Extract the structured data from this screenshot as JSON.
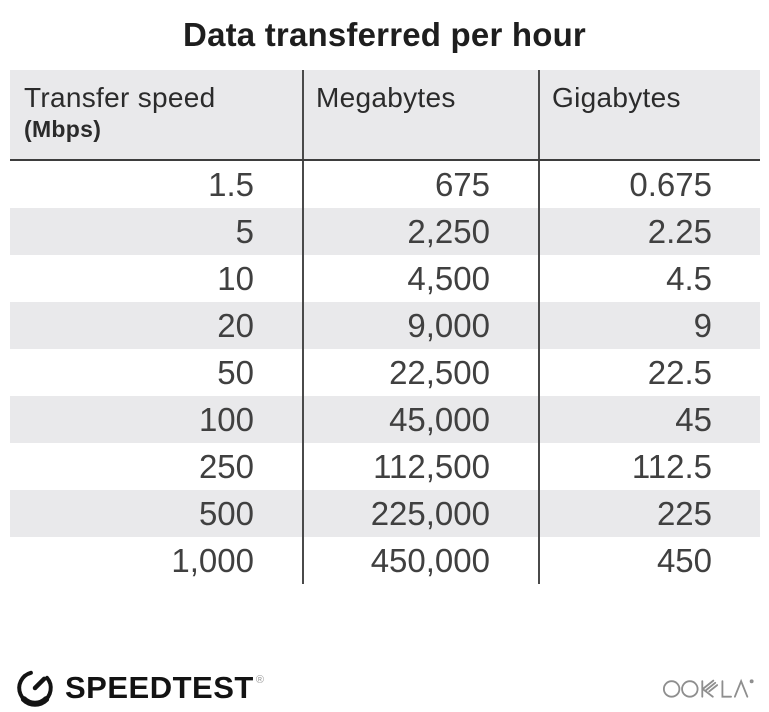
{
  "title": "Data transferred per hour",
  "table": {
    "columns": [
      {
        "label": "Transfer speed",
        "sublabel": "(Mbps)"
      },
      {
        "label": "Megabytes",
        "sublabel": ""
      },
      {
        "label": "Gigabytes",
        "sublabel": ""
      }
    ],
    "rows": [
      [
        "1.5",
        "675",
        "0.675"
      ],
      [
        "5",
        "2,250",
        "2.25"
      ],
      [
        "10",
        "4,500",
        "4.5"
      ],
      [
        "20",
        "9,000",
        "9"
      ],
      [
        "50",
        "22,500",
        "22.5"
      ],
      [
        "100",
        "45,000",
        "45"
      ],
      [
        "250",
        "112,500",
        "112.5"
      ],
      [
        "500",
        "225,000",
        "225"
      ],
      [
        "1,000",
        "450,000",
        "450"
      ]
    ]
  },
  "chart_data": {
    "type": "table",
    "title": "Data transferred per hour",
    "columns": [
      "Transfer speed (Mbps)",
      "Megabytes",
      "Gigabytes"
    ],
    "rows": [
      [
        1.5,
        675,
        0.675
      ],
      [
        5,
        2250,
        2.25
      ],
      [
        10,
        4500,
        4.5
      ],
      [
        20,
        9000,
        9
      ],
      [
        50,
        22500,
        22.5
      ],
      [
        100,
        45000,
        45
      ],
      [
        250,
        112500,
        112.5
      ],
      [
        500,
        225000,
        225
      ],
      [
        1000,
        450000,
        450
      ]
    ]
  },
  "footer": {
    "speedtest_label": "SPEEDTEST",
    "speedtest_trademark": "®",
    "ookla_label": "OOKLA"
  },
  "colors": {
    "header_bg": "#e9e9eb",
    "stripe_bg": "#e9e9eb",
    "divider": "#4a4a4a",
    "header_rule": "#3d3d3d",
    "title_text": "#1e1e1e",
    "cell_text": "#404040",
    "ookla_gray": "#8e8e8e",
    "speedtest_black": "#131313"
  }
}
